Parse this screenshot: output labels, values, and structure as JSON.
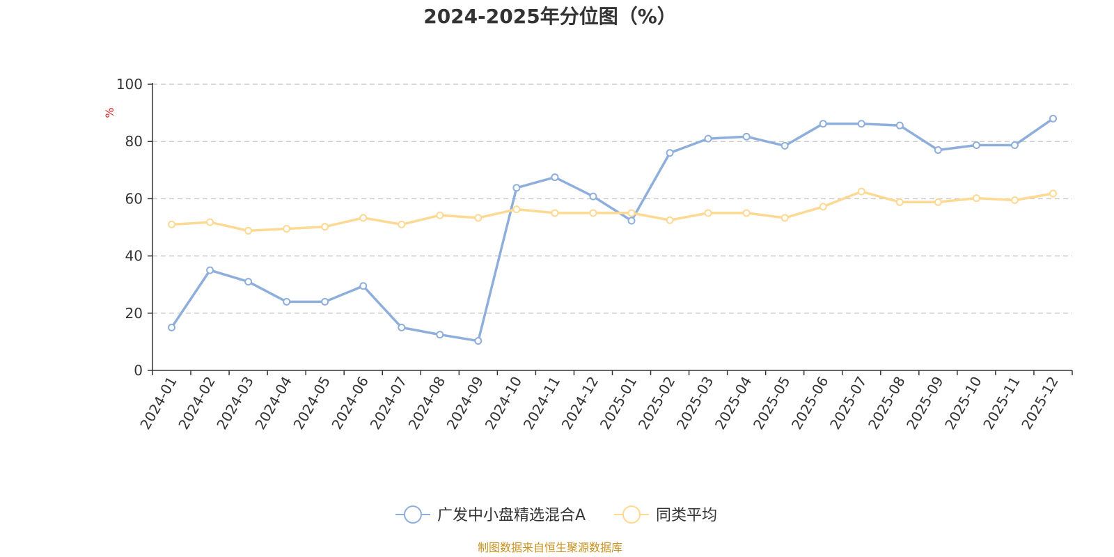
{
  "chart_data": {
    "type": "line",
    "title": "2024-2025年分位图（%）",
    "ylabel": "%",
    "ylim": [
      0,
      100
    ],
    "yticks": [
      0,
      20,
      40,
      60,
      80,
      100
    ],
    "grid": true,
    "legend_position": "bottom",
    "categories": [
      "2024-01",
      "2024-02",
      "2024-03",
      "2024-04",
      "2024-05",
      "2024-06",
      "2024-07",
      "2024-08",
      "2024-09",
      "2024-10",
      "2024-11",
      "2024-12",
      "2025-01",
      "2025-02",
      "2025-03",
      "2025-04",
      "2025-05",
      "2025-06",
      "2025-07",
      "2025-08",
      "2025-09",
      "2025-10",
      "2025-11",
      "2025-12"
    ],
    "series": [
      {
        "name": "广发中小盘精选混合A",
        "color": "#8eaedb",
        "values": [
          15,
          35,
          31,
          24,
          24,
          29.5,
          15,
          12.5,
          10.3,
          63.8,
          67.5,
          60.8,
          52.3,
          76,
          81,
          81.7,
          78.5,
          86.2,
          86.2,
          85.6,
          77,
          78.7,
          78.7,
          88
        ]
      },
      {
        "name": "同类平均",
        "color": "#fdd993",
        "values": [
          51,
          51.8,
          48.8,
          49.5,
          50.2,
          53.3,
          51,
          54.2,
          53.3,
          56.3,
          55,
          55,
          55,
          52.5,
          55,
          55,
          53.3,
          57.2,
          62.5,
          58.8,
          58.8,
          60.2,
          59.5,
          61.8
        ]
      }
    ]
  },
  "source": "制图数据来自恒生聚源数据库",
  "colors": {
    "axis": "#333333",
    "grid": "#cccccc",
    "ylabel": "#e02020",
    "source": "#c8921e"
  }
}
